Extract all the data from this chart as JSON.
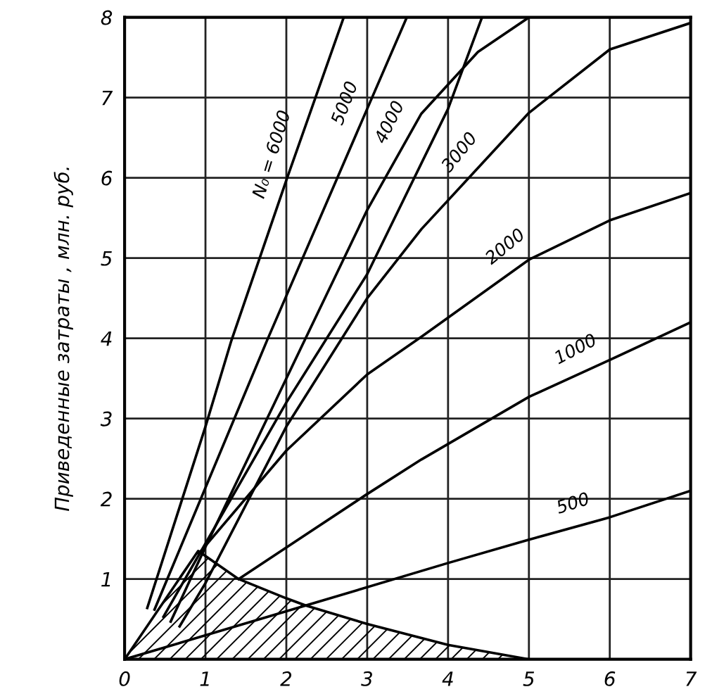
{
  "chart_data": {
    "type": "line",
    "ylabel": "Приведенные затраты , млн. руб.",
    "xlim": [
      0,
      7
    ],
    "ylim": [
      0,
      8
    ],
    "xticks": [
      0,
      1,
      2,
      3,
      4,
      5,
      6,
      7
    ],
    "yticks": [
      1,
      2,
      3,
      4,
      5,
      6,
      7,
      8
    ],
    "grid": true,
    "marker": "none",
    "line_style": "solid",
    "series": [
      {
        "name": "N₀ = 6000",
        "color": "#000000",
        "x": [
          0.28,
          1.0,
          1.32,
          2.0,
          2.71
        ],
        "values": [
          0.64,
          2.9,
          3.97,
          5.97,
          8.0
        ]
      },
      {
        "name": "5000",
        "color": "#000000",
        "x": [
          0.37,
          1.76,
          3.0,
          3.49
        ],
        "values": [
          0.62,
          3.97,
          6.86,
          8.0
        ]
      },
      {
        "name": "4000",
        "color": "#000000",
        "x": [
          0.57,
          1.0,
          2.0,
          3.0,
          3.67,
          4.37,
          5.0
        ],
        "values": [
          0.47,
          1.4,
          3.5,
          5.6,
          6.8,
          7.57,
          8.0
        ]
      },
      {
        "name": "3000",
        "color": "#000000",
        "x": [
          0.68,
          1.0,
          2.0,
          3.0,
          3.67,
          5.0,
          6.0,
          7.0
        ],
        "values": [
          0.41,
          0.95,
          2.9,
          4.5,
          5.36,
          6.81,
          7.6,
          7.93
        ]
      },
      {
        "name": "2000",
        "color": "#000000",
        "x": [
          0.92,
          2.0,
          3.0,
          3.67,
          5.0,
          6.0,
          7.0
        ],
        "values": [
          1.32,
          2.6,
          3.55,
          4.02,
          4.98,
          5.47,
          5.81
        ]
      },
      {
        "name": "1000",
        "color": "#000000",
        "x": [
          1.41,
          2.97,
          3.67,
          5.0,
          6.0,
          7.0
        ],
        "values": [
          1.0,
          2.04,
          2.49,
          3.27,
          3.73,
          4.2
        ]
      },
      {
        "name": "500",
        "color": "#000000",
        "x": [
          0.0,
          2.24,
          4.0,
          5.0,
          6.0,
          7.0
        ],
        "values": [
          0.0,
          0.67,
          1.2,
          1.49,
          1.77,
          2.1
        ]
      },
      {
        "color": "#000000",
        "x": [
          0.48,
          2.0,
          3.0,
          4.0,
          4.42
        ],
        "values": [
          0.53,
          3.2,
          4.8,
          6.86,
          8.0
        ]
      },
      {
        "type": "area",
        "color": "#000000",
        "x": [
          0.0,
          0.91,
          1.41,
          2.0,
          2.24,
          3.0,
          4.0,
          5.0,
          7.0
        ],
        "values": [
          0.0,
          1.35,
          1.0,
          0.76,
          0.67,
          0.44,
          0.18,
          0.0,
          0.0
        ]
      }
    ]
  }
}
